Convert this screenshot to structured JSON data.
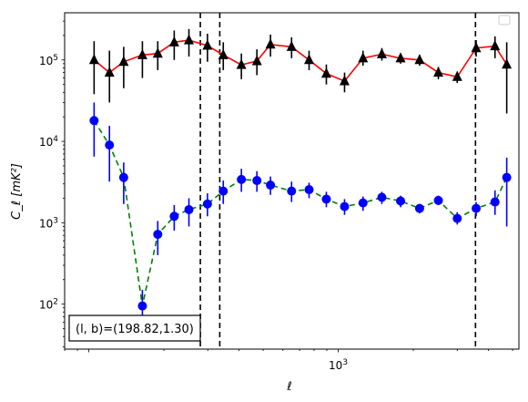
{
  "chart_data": {
    "type": "scatter",
    "xlabel": "ℓ",
    "ylabel": "C_ℓ [mK²]",
    "xscale": "log",
    "yscale": "log",
    "xlim": [
      80,
      5300
    ],
    "ylim": [
      28,
      380000
    ],
    "x_tick_labels": [
      {
        "value": 1000,
        "base": "10",
        "exp": "3"
      }
    ],
    "y_tick_labels": [
      {
        "value": 100,
        "base": "10",
        "exp": "2"
      },
      {
        "value": 1000,
        "base": "10",
        "exp": "3"
      },
      {
        "value": 10000,
        "base": "10",
        "exp": "4"
      },
      {
        "value": 100000,
        "base": "10",
        "exp": "5"
      }
    ],
    "annotation": "(l, b)=(198.82,1.30)",
    "vlines": [
      {
        "x": 280
      },
      {
        "x": 335
      },
      {
        "x": 3550
      }
    ],
    "legend": {
      "placement": "top-right",
      "entries": []
    },
    "series": [
      {
        "marker": "triangle",
        "color": "#000000",
        "line_color": "#ff0000",
        "line_style": "solid",
        "points": [
          {
            "x": 105,
            "y": 100000,
            "lo": 38000,
            "hi": 170000
          },
          {
            "x": 121,
            "y": 70000,
            "lo": 30000,
            "hi": 130000
          },
          {
            "x": 138,
            "y": 95000,
            "lo": 45000,
            "hi": 145000
          },
          {
            "x": 164,
            "y": 115000,
            "lo": 60000,
            "hi": 170000
          },
          {
            "x": 189,
            "y": 120000,
            "lo": 75000,
            "hi": 170000
          },
          {
            "x": 220,
            "y": 165000,
            "lo": 100000,
            "hi": 230000
          },
          {
            "x": 252,
            "y": 175000,
            "lo": 110000,
            "hi": 240000
          },
          {
            "x": 299,
            "y": 150000,
            "lo": 95000,
            "hi": 210000
          },
          {
            "x": 346,
            "y": 115000,
            "lo": 75000,
            "hi": 165000
          },
          {
            "x": 409,
            "y": 87000,
            "lo": 58000,
            "hi": 120000
          },
          {
            "x": 472,
            "y": 97000,
            "lo": 65000,
            "hi": 135000
          },
          {
            "x": 535,
            "y": 155000,
            "lo": 110000,
            "hi": 205000
          },
          {
            "x": 650,
            "y": 145000,
            "lo": 105000,
            "hi": 190000
          },
          {
            "x": 764,
            "y": 100000,
            "lo": 75000,
            "hi": 130000
          },
          {
            "x": 896,
            "y": 68000,
            "lo": 50000,
            "hi": 88000
          },
          {
            "x": 1060,
            "y": 55000,
            "lo": 40000,
            "hi": 70000
          },
          {
            "x": 1257,
            "y": 105000,
            "lo": 85000,
            "hi": 130000
          },
          {
            "x": 1496,
            "y": 118000,
            "lo": 98000,
            "hi": 140000
          },
          {
            "x": 1778,
            "y": 105000,
            "lo": 90000,
            "hi": 120000
          },
          {
            "x": 2119,
            "y": 100000,
            "lo": 85000,
            "hi": 115000
          },
          {
            "x": 2520,
            "y": 70000,
            "lo": 58000,
            "hi": 82000
          },
          {
            "x": 3000,
            "y": 62000,
            "lo": 52000,
            "hi": 72000
          },
          {
            "x": 3572,
            "y": 140000,
            "lo": 110000,
            "hi": 175000
          },
          {
            "x": 4251,
            "y": 148000,
            "lo": 105000,
            "hi": 195000
          },
          {
            "x": 4737,
            "y": 88000,
            "lo": 22000,
            "hi": 165000
          }
        ]
      },
      {
        "marker": "circle",
        "color": "#0000ff",
        "line_color": "#008000",
        "line_style": "dashed",
        "points": [
          {
            "x": 105,
            "y": 18000,
            "lo": 6500,
            "hi": 30000
          },
          {
            "x": 121,
            "y": 9000,
            "lo": 3200,
            "hi": 15500
          },
          {
            "x": 138,
            "y": 3600,
            "lo": 1700,
            "hi": 5500
          },
          {
            "x": 164,
            "y": 95,
            "lo": 50,
            "hi": 150
          },
          {
            "x": 189,
            "y": 720,
            "lo": 400,
            "hi": 1050
          },
          {
            "x": 220,
            "y": 1200,
            "lo": 800,
            "hi": 1650
          },
          {
            "x": 252,
            "y": 1450,
            "lo": 900,
            "hi": 2000
          },
          {
            "x": 299,
            "y": 1700,
            "lo": 1200,
            "hi": 2300
          },
          {
            "x": 346,
            "y": 2450,
            "lo": 1700,
            "hi": 3300
          },
          {
            "x": 409,
            "y": 3400,
            "lo": 2400,
            "hi": 4600
          },
          {
            "x": 472,
            "y": 3300,
            "lo": 2400,
            "hi": 4300
          },
          {
            "x": 535,
            "y": 2900,
            "lo": 2200,
            "hi": 3700
          },
          {
            "x": 650,
            "y": 2450,
            "lo": 1800,
            "hi": 3200
          },
          {
            "x": 764,
            "y": 2550,
            "lo": 2000,
            "hi": 3100
          },
          {
            "x": 896,
            "y": 1950,
            "lo": 1550,
            "hi": 2400
          },
          {
            "x": 1060,
            "y": 1580,
            "lo": 1250,
            "hi": 1950
          },
          {
            "x": 1257,
            "y": 1750,
            "lo": 1400,
            "hi": 2100
          },
          {
            "x": 1496,
            "y": 2050,
            "lo": 1700,
            "hi": 2400
          },
          {
            "x": 1778,
            "y": 1850,
            "lo": 1550,
            "hi": 2150
          },
          {
            "x": 2119,
            "y": 1500,
            "lo": 1300,
            "hi": 1700
          },
          {
            "x": 2520,
            "y": 1880,
            "lo": 1650,
            "hi": 2150
          },
          {
            "x": 3000,
            "y": 1130,
            "lo": 950,
            "hi": 1350
          },
          {
            "x": 3572,
            "y": 1500,
            "lo": 1200,
            "hi": 1800
          },
          {
            "x": 4251,
            "y": 1800,
            "lo": 1250,
            "hi": 2500
          },
          {
            "x": 4737,
            "y": 3600,
            "lo": 900,
            "hi": 6300
          }
        ]
      }
    ]
  }
}
